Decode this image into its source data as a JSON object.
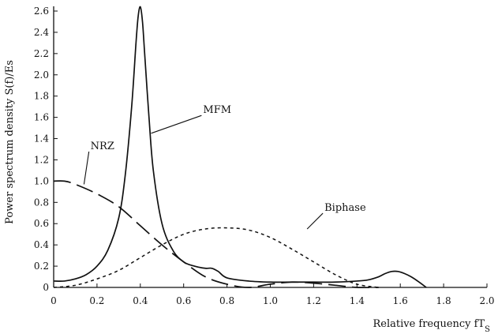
{
  "chart_data": {
    "type": "line",
    "title": "",
    "xlabel": "Relative frequency fT",
    "xlabel_subscript": "S",
    "ylabel": "Power spectrum density S(f)/Es",
    "xlim": [
      0,
      2.0
    ],
    "ylim": [
      0,
      2.6
    ],
    "x_ticks": [
      "0",
      "0.2",
      "0.4",
      "0.6",
      "0.8",
      "1.0",
      "1.2",
      "1.4",
      "1.6",
      "1.8",
      "2.0"
    ],
    "y_ticks": [
      "0",
      "0.2",
      "0.4",
      "0.6",
      "0.8",
      "1.0",
      "1.2",
      "1.4",
      "1.6",
      "1.8",
      "2.0",
      "2.2",
      "2.4",
      "2.6"
    ],
    "grid": false,
    "legend": "inline labels",
    "series": [
      {
        "name": "MFM",
        "style": "solid",
        "x": [
          0,
          0.05,
          0.1,
          0.15,
          0.2,
          0.25,
          0.3,
          0.33,
          0.36,
          0.38,
          0.39,
          0.4,
          0.41,
          0.42,
          0.44,
          0.46,
          0.5,
          0.55,
          0.6,
          0.65,
          0.7,
          0.73,
          0.76,
          0.8,
          0.9,
          1.0,
          1.1,
          1.2,
          1.3,
          1.4,
          1.45,
          1.5,
          1.53,
          1.56,
          1.59,
          1.62,
          1.65,
          1.68,
          1.7,
          1.72
        ],
        "y": [
          0.06,
          0.06,
          0.08,
          0.12,
          0.2,
          0.35,
          0.65,
          1.05,
          1.7,
          2.3,
          2.55,
          2.64,
          2.5,
          2.2,
          1.6,
          1.1,
          0.6,
          0.35,
          0.24,
          0.2,
          0.18,
          0.18,
          0.15,
          0.09,
          0.06,
          0.05,
          0.05,
          0.05,
          0.05,
          0.06,
          0.07,
          0.1,
          0.13,
          0.15,
          0.15,
          0.13,
          0.1,
          0.06,
          0.03,
          0.0
        ]
      },
      {
        "name": "NRZ",
        "style": "long-dash",
        "x": [
          0,
          0.05,
          0.1,
          0.2,
          0.3,
          0.4,
          0.5,
          0.6,
          0.7,
          0.8,
          0.9,
          1.0,
          1.1,
          1.2,
          1.3,
          1.4,
          1.5
        ],
        "y": [
          1.0,
          1.0,
          0.97,
          0.88,
          0.76,
          0.58,
          0.4,
          0.24,
          0.1,
          0.03,
          0.0,
          0.03,
          0.05,
          0.04,
          0.02,
          0.0,
          0.0
        ]
      },
      {
        "name": "Biphase",
        "style": "short-dash",
        "x": [
          0,
          0.1,
          0.2,
          0.3,
          0.4,
          0.5,
          0.6,
          0.7,
          0.8,
          0.9,
          1.0,
          1.1,
          1.2,
          1.3,
          1.4,
          1.5
        ],
        "y": [
          0.0,
          0.02,
          0.08,
          0.16,
          0.28,
          0.4,
          0.5,
          0.55,
          0.56,
          0.54,
          0.47,
          0.36,
          0.24,
          0.12,
          0.03,
          0.0
        ]
      }
    ],
    "annotations": [
      {
        "text": "MFM",
        "x": 0.69,
        "y": 1.64,
        "points_to": [
          0.45,
          1.45
        ]
      },
      {
        "text": "NRZ",
        "x": 0.17,
        "y": 1.3,
        "points_to": [
          0.14,
          0.97
        ]
      },
      {
        "text": "Biphase",
        "x": 1.25,
        "y": 0.72,
        "points_to": [
          1.17,
          0.55
        ]
      }
    ]
  }
}
